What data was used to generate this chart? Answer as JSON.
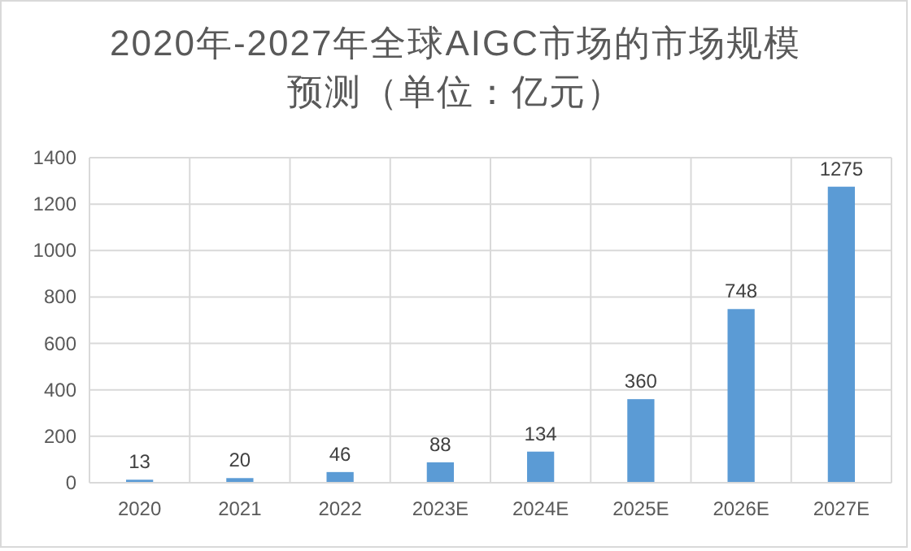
{
  "chart_data": {
    "type": "bar",
    "title": "2020年-2027年全球AIGC市场的市场规模预测（单位：亿元）",
    "categories": [
      "2020",
      "2021",
      "2022",
      "2023E",
      "2024E",
      "2025E",
      "2026E",
      "2027E"
    ],
    "values": [
      13,
      20,
      46,
      88,
      134,
      360,
      748,
      1275
    ],
    "color": "#5b9bd5",
    "ylim": [
      0,
      1400
    ],
    "yticks": [
      0,
      200,
      400,
      600,
      800,
      1000,
      1200,
      1400
    ],
    "grid": true,
    "data_labels": true
  }
}
